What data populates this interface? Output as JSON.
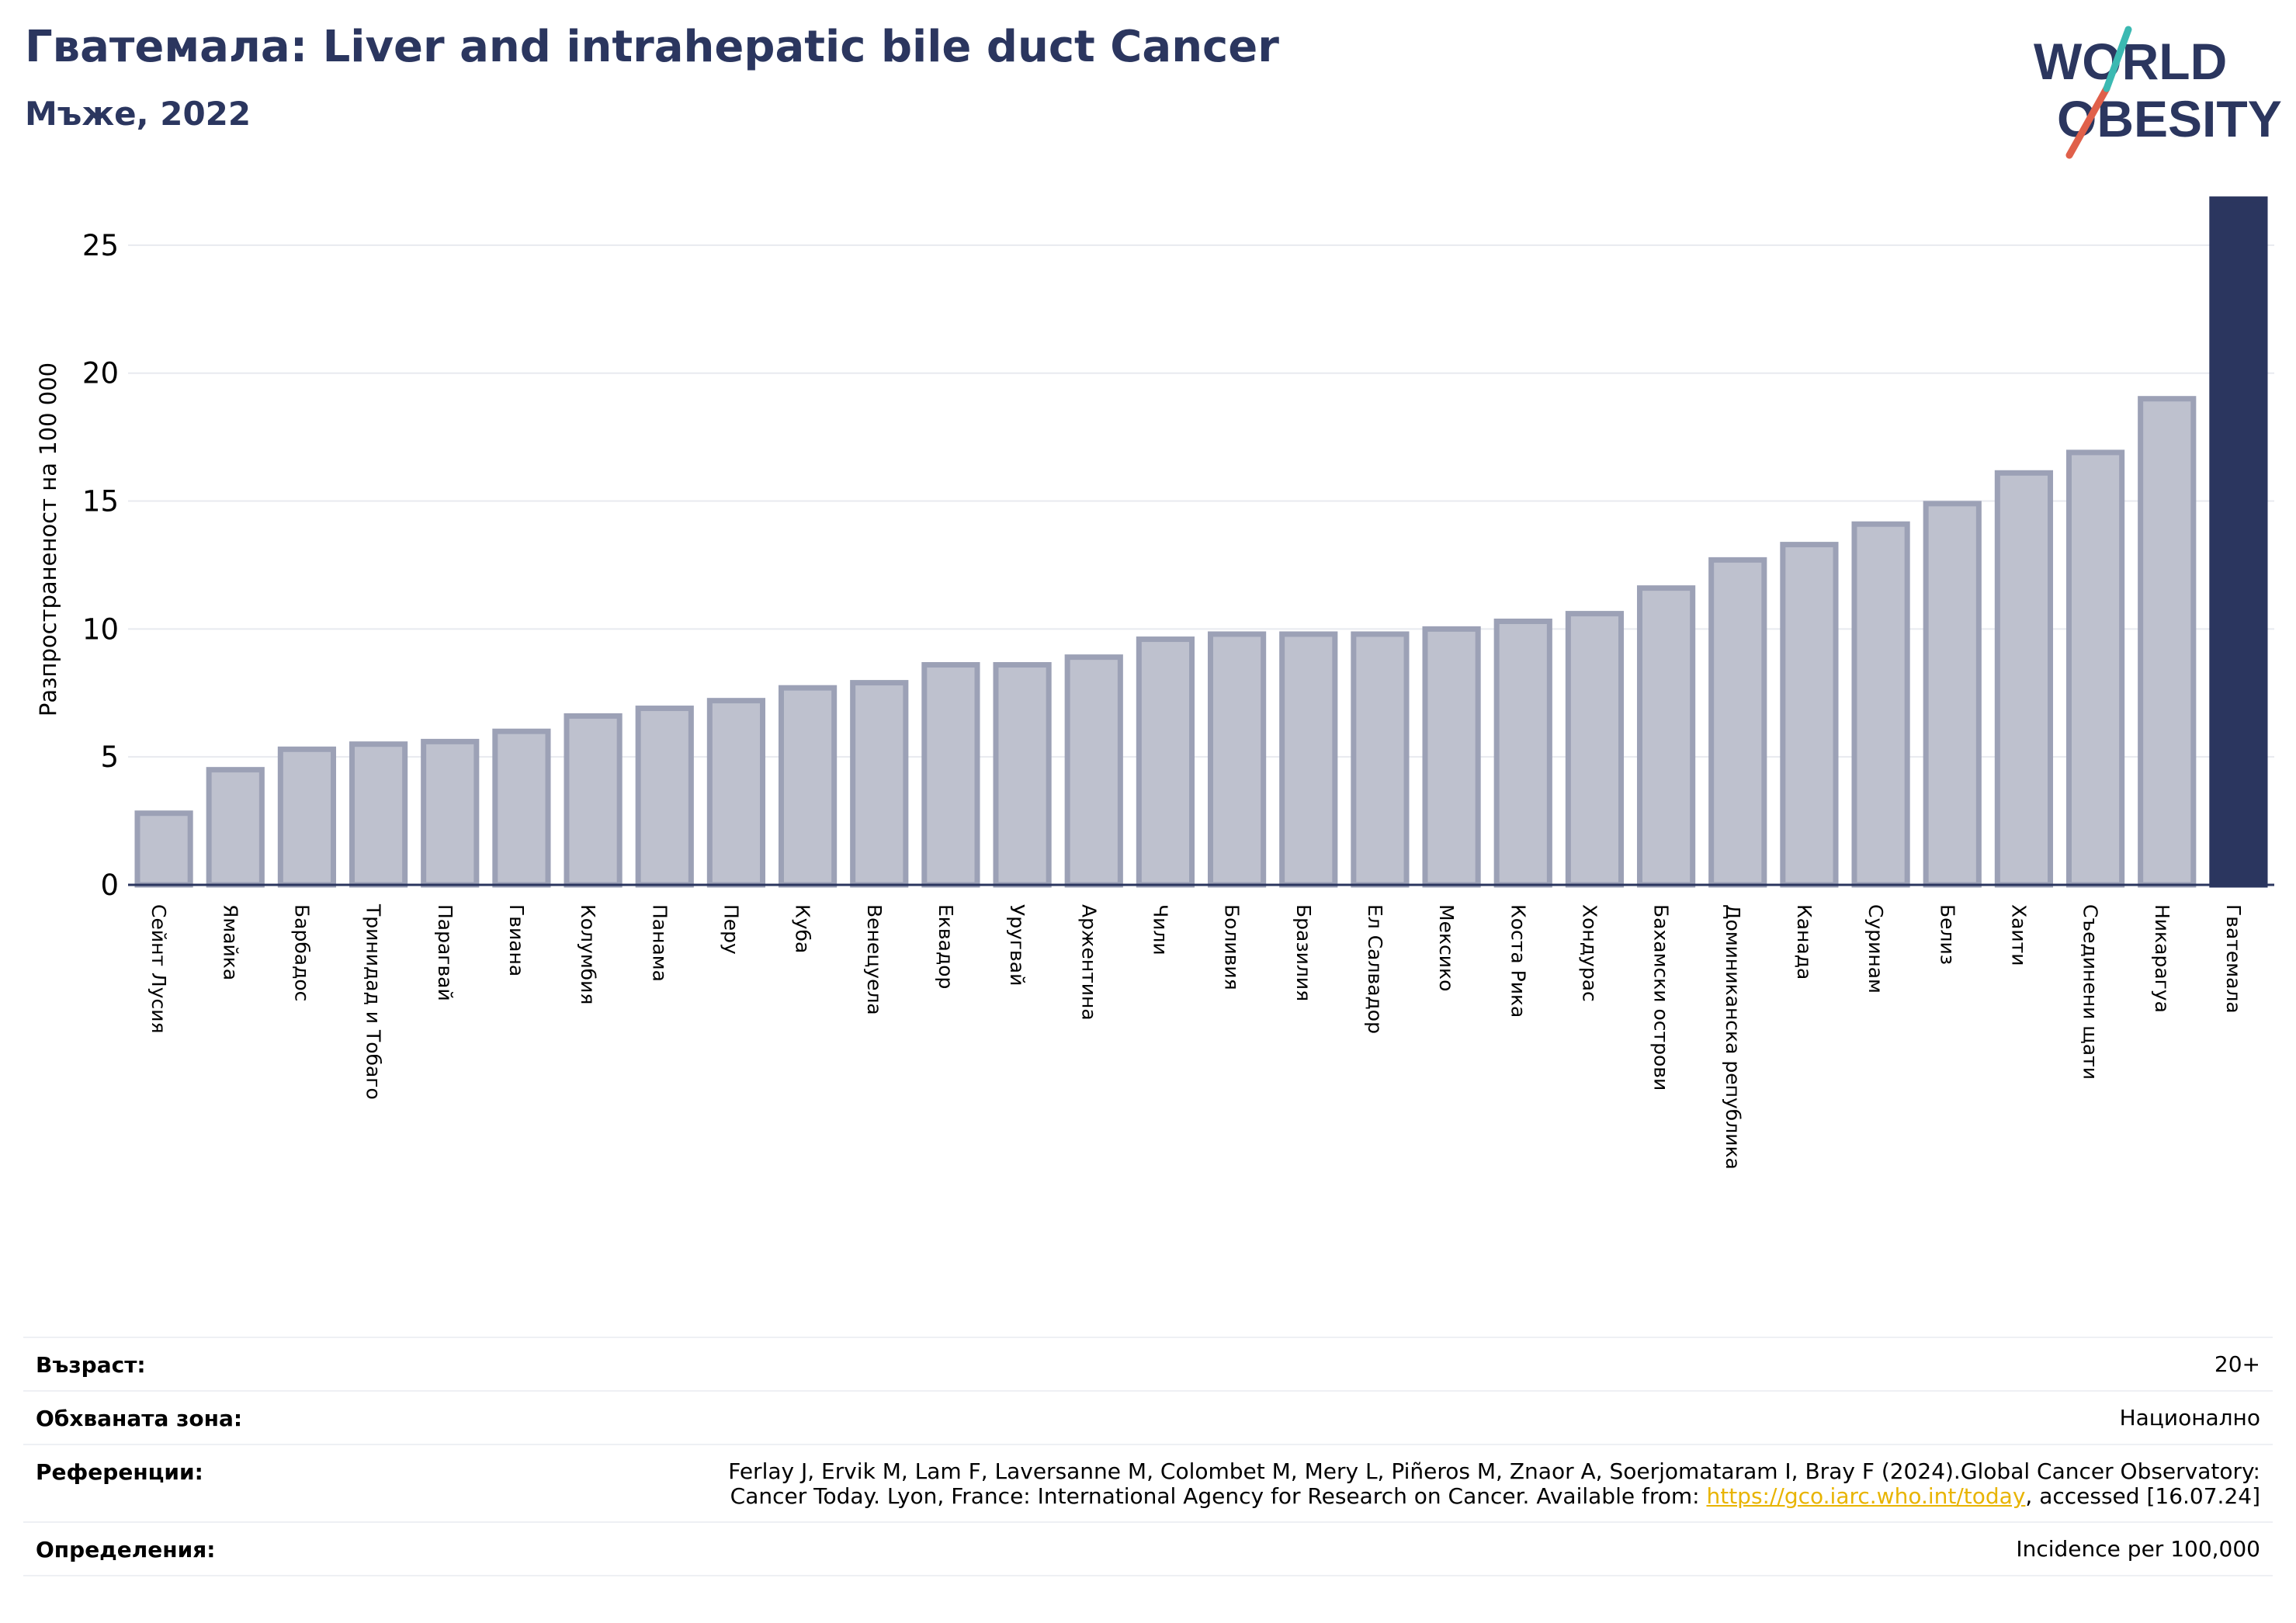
{
  "header": {
    "title": "Гватемала: Liver and intrahepatic bile duct Cancer",
    "subtitle": "Мъже, 2022"
  },
  "logo": {
    "line1": "WORLD",
    "line2": "OBESITY",
    "accent_teal": "#3bb9b2",
    "accent_red": "#e0604a",
    "color": "#2b365f"
  },
  "colors": {
    "bar": "#bec1ce",
    "bar_edge": "#9ca1b6",
    "highlight": "#2b365f",
    "title": "#2b365f",
    "grid": "#e8eaef"
  },
  "chart_data": {
    "type": "bar",
    "title": "Гватемала: Liver and intrahepatic bile duct Cancer",
    "subtitle": "Мъже, 2022",
    "ylabel": "Разпространеност  на 100 000",
    "xlabel": "",
    "ylim": [
      0,
      27
    ],
    "yticks": [
      0,
      5,
      10,
      15,
      20,
      25
    ],
    "grid": true,
    "highlight": "Гватемала",
    "categories": [
      "Сейнт Лусия",
      "Ямайка",
      "Барбадос",
      "Тринидад и Тобаго",
      "Парагвай",
      "Гвиана",
      "Колумбия",
      "Панама",
      "Перу",
      "Куба",
      "Венецуела",
      "Еквадор",
      "Уругвай",
      "Аржентина",
      "Чили",
      "Боливия",
      "Бразилия",
      "Ел Салвадор",
      "Мексико",
      "Коста Рика",
      "Хондурас",
      "Бахамски острови",
      "Доминиканска република",
      "Канада",
      "Суринам",
      "Белиз",
      "Хаити",
      "Съединени щати",
      "Никарагуа",
      "Гватемала"
    ],
    "values": [
      2.8,
      4.5,
      5.3,
      5.5,
      5.6,
      6.0,
      6.6,
      6.9,
      7.2,
      7.7,
      7.9,
      8.6,
      8.6,
      8.9,
      9.6,
      9.8,
      9.8,
      9.8,
      10.0,
      10.3,
      10.6,
      11.6,
      12.7,
      13.3,
      14.1,
      14.9,
      16.1,
      16.9,
      19.0,
      26.8
    ]
  },
  "meta": {
    "age_label": "Възраст:",
    "age_value": "20+",
    "coverage_label": "Обхваната зона:",
    "coverage_value": "Национално",
    "refs_label": "Референции:",
    "refs_line1": "Ferlay J, Ervik M, Lam F, Laversanne M, Colombet M, Mery L, Piñeros M, Znaor A, Soerjomataram I, Bray F (2024).Global Cancer Observatory:",
    "refs_line2_pre": "Cancer Today. Lyon, France: International Agency for Research on Cancer. Available from: ",
    "refs_link": "https://gco.iarc.who.int/today",
    "refs_line2_post": ", accessed [16.07.24]",
    "defs_label": "Определения:",
    "defs_value": "Incidence per 100,000"
  }
}
